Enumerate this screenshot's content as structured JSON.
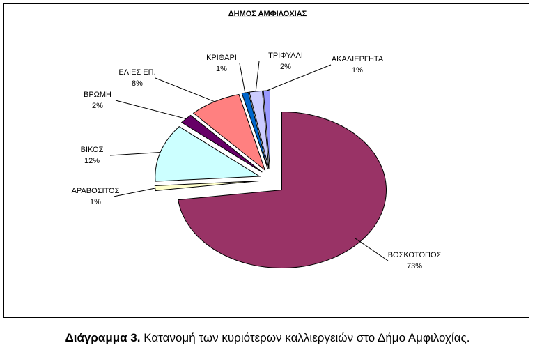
{
  "chart_data": {
    "type": "pie",
    "title": "ΔΗΜΟΣ ΑΜΦΙΛΟΧΙΑΣ",
    "categories": [
      "ΒΟΣΚΟΤΟΠΟΣ",
      "ΑΡΑΒΟΣΙΤΟΣ",
      "ΒΙΚΟΣ",
      "ΒΡΩΜΗ",
      "ΕΛΙΕΣ ΕΠ.",
      "ΚΡΙΘΑΡΙ",
      "ΤΡΙΦΥΛΛΙ",
      "ΑΚΑΛΙΕΡΓΗΤΑ"
    ],
    "values": [
      73,
      1,
      12,
      2,
      8,
      1,
      2,
      1
    ],
    "value_labels": [
      "73%",
      "1%",
      "12%",
      "2%",
      "8%",
      "1%",
      "2%",
      "1%"
    ],
    "colors": [
      "#993366",
      "#ffffcc",
      "#ccffff",
      "#660066",
      "#ff8080",
      "#0066cc",
      "#ccccff",
      "#9999ff"
    ],
    "caption_label": "Διάγραμμα 3.",
    "caption": "Κατανομή των κυριότερων καλλιεργειών στο Δήμο Αμφιλοχίας."
  }
}
